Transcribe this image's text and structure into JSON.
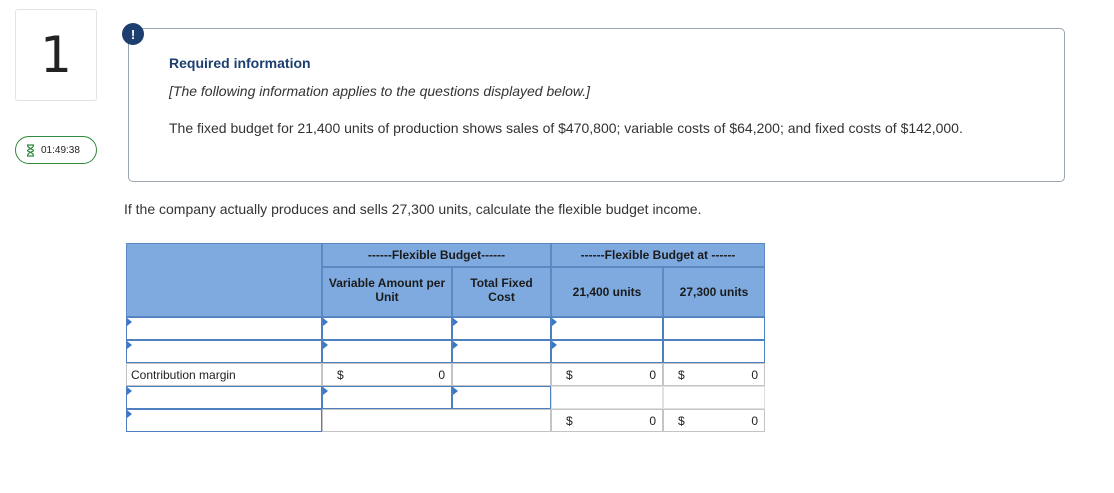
{
  "question": {
    "number": "1"
  },
  "timer": {
    "time": "01:49:38"
  },
  "info": {
    "alert_symbol": "!",
    "title": "Required information",
    "subtitle": "[The following information applies to the questions displayed below.]",
    "body": "The fixed budget for 21,400 units of production shows sales of $470,800; variable costs of $64,200; and fixed costs of $142,000."
  },
  "prompt": "If the company actually produces and sells 27,300 units, calculate the flexible budget income.",
  "table": {
    "group_header_1": "------Flexible Budget------",
    "group_header_2": "------Flexible Budget at ------",
    "col_variable": "Variable Amount per Unit",
    "col_fixed": "Total Fixed Cost",
    "col_units_1": "21,400 units",
    "col_units_2": "27,300 units",
    "contribution_label": "Contribution margin",
    "currency": "$",
    "contribution_variable": "0",
    "contribution_21400": "0",
    "contribution_27300": "0",
    "income_21400": "0",
    "income_27300": "0"
  },
  "colors": {
    "header_fill": "#7eaae0",
    "accent_navy": "#1c3f70",
    "timer_green": "#2f8a3c"
  }
}
